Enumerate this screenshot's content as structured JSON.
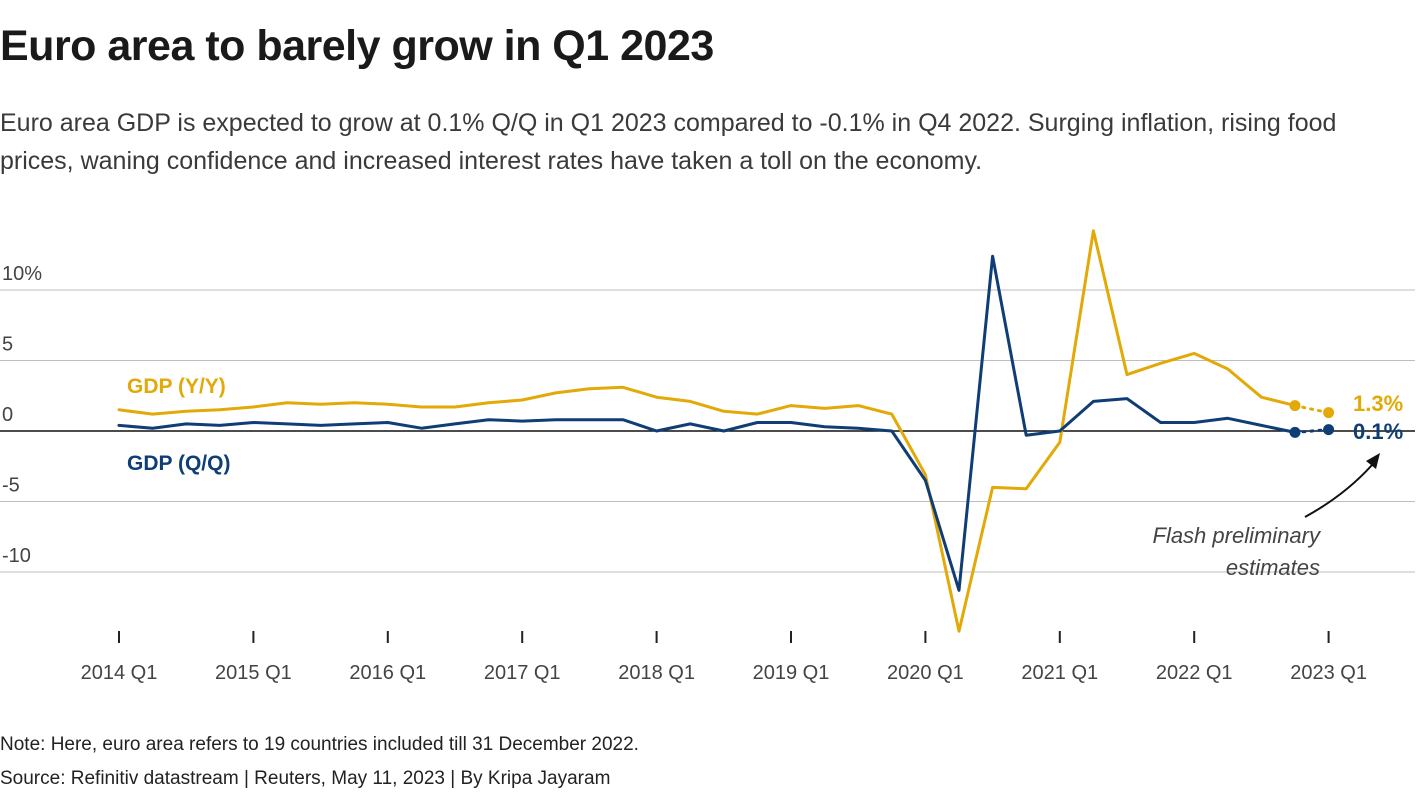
{
  "title": "Euro area to barely grow in Q1 2023",
  "subtitle": "Euro area GDP is expected to grow at 0.1% Q/Q in Q1 2023 compared to -0.1% in Q4 2022. Surging inflation, rising food prices, waning confidence and increased interest rates have taken a toll on the economy.",
  "note": "Note: Here, euro area refers to 19 countries included till 31 December 2022.",
  "source": "Source: Refinitiv datastream | Reuters, May 11, 2023 | By Kripa Jayaram",
  "chart_data": {
    "type": "line",
    "x": [
      "2014 Q1",
      "2014 Q2",
      "2014 Q3",
      "2014 Q4",
      "2015 Q1",
      "2015 Q2",
      "2015 Q3",
      "2015 Q4",
      "2016 Q1",
      "2016 Q2",
      "2016 Q3",
      "2016 Q4",
      "2017 Q1",
      "2017 Q2",
      "2017 Q3",
      "2017 Q4",
      "2018 Q1",
      "2018 Q2",
      "2018 Q3",
      "2018 Q4",
      "2019 Q1",
      "2019 Q2",
      "2019 Q3",
      "2019 Q4",
      "2020 Q1",
      "2020 Q2",
      "2020 Q3",
      "2020 Q4",
      "2021 Q1",
      "2021 Q2",
      "2021 Q3",
      "2021 Q4",
      "2022 Q1",
      "2022 Q2",
      "2022 Q3",
      "2022 Q4",
      "2023 Q1"
    ],
    "xtick_labels": [
      "2014 Q1",
      "2015 Q1",
      "2016 Q1",
      "2017 Q1",
      "2018 Q1",
      "2019 Q1",
      "2020 Q1",
      "2021 Q1",
      "2022 Q1",
      "2023 Q1"
    ],
    "ytick_labels": [
      "10%",
      "5",
      "0",
      "-5",
      "-10"
    ],
    "ylim": [
      -15,
      14.5
    ],
    "grid": true,
    "series": [
      {
        "name": "GDP (Y/Y)",
        "color": "#e3a907",
        "values": [
          1.5,
          1.2,
          1.4,
          1.5,
          1.7,
          2.0,
          1.9,
          2.0,
          1.9,
          1.7,
          1.7,
          2.0,
          2.2,
          2.7,
          3.0,
          3.1,
          2.4,
          2.1,
          1.4,
          1.2,
          1.8,
          1.6,
          1.8,
          1.2,
          -3.1,
          -14.2,
          -4.0,
          -4.1,
          -0.8,
          14.2,
          4.0,
          4.8,
          5.5,
          4.4,
          2.4,
          1.8,
          1.3
        ],
        "end_label": "1.3%"
      },
      {
        "name": "GDP (Q/Q)",
        "color": "#0f3d75",
        "values": [
          0.4,
          0.2,
          0.5,
          0.4,
          0.6,
          0.5,
          0.4,
          0.5,
          0.6,
          0.2,
          0.5,
          0.8,
          0.7,
          0.8,
          0.8,
          0.8,
          0.0,
          0.5,
          0.0,
          0.6,
          0.6,
          0.3,
          0.2,
          0.0,
          -3.5,
          -11.3,
          12.4,
          -0.3,
          0.0,
          2.1,
          2.3,
          0.6,
          0.6,
          0.9,
          0.4,
          -0.1,
          0.1
        ],
        "end_label": "0.1%"
      }
    ],
    "annotation": "Flash preliminary estimates",
    "annotation_lines": [
      "Flash preliminary",
      "estimates"
    ]
  }
}
